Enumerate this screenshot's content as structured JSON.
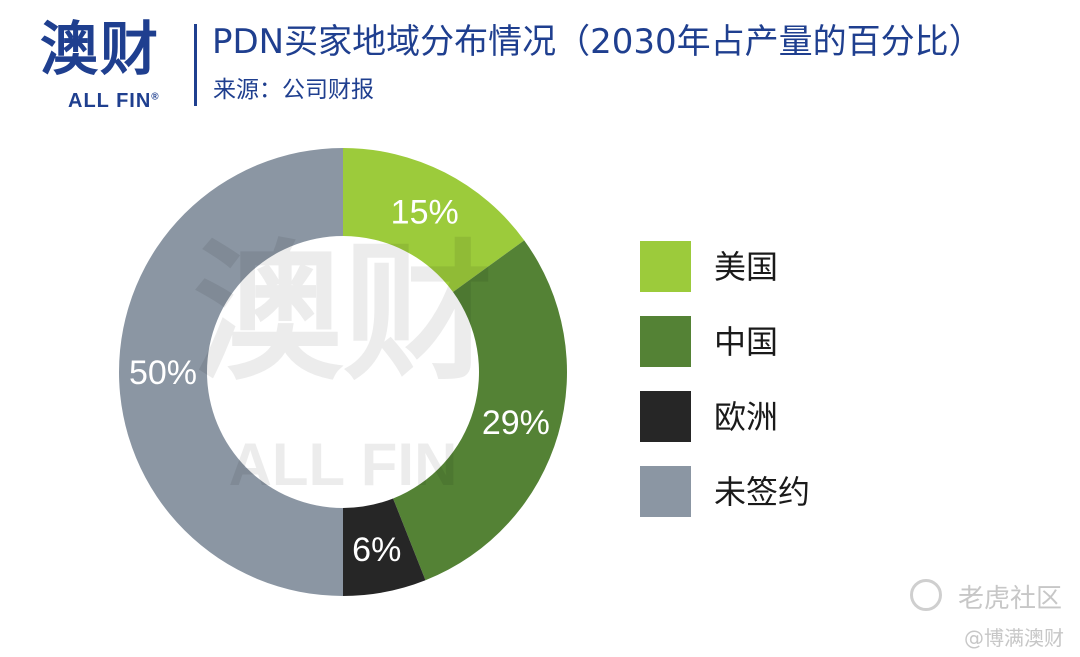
{
  "logo": {
    "main": "澳财",
    "sub": "ALL FIN",
    "mark": "®"
  },
  "header": {
    "title": "PDN买家地域分布情况（2030年占产量的百分比）",
    "source": "来源：公司财报"
  },
  "chart_data": {
    "type": "pie",
    "donut": true,
    "title": "PDN买家地域分布情况（2030年占产量的百分比）",
    "slices": [
      {
        "label": "美国",
        "value": 15,
        "display": "15%",
        "color": "#9ccb3b"
      },
      {
        "label": "中国",
        "value": 29,
        "display": "29%",
        "color": "#548235"
      },
      {
        "label": "欧洲",
        "value": 6,
        "display": "6%",
        "color": "#262626"
      },
      {
        "label": "未签约",
        "value": 50,
        "display": "50%",
        "color": "#8b96a3"
      }
    ],
    "legend_placement": "right"
  },
  "watermark": {
    "platform": "老虎社区",
    "author": "@博满澳财",
    "center_main": "澳财",
    "center_sub": "ALL FIN"
  }
}
